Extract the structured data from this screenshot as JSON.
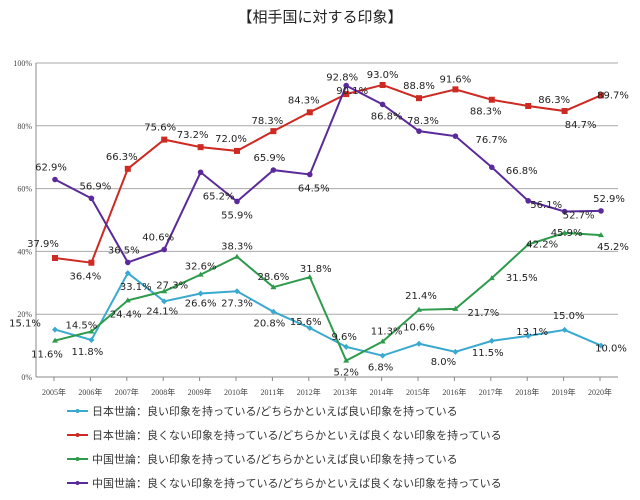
{
  "chart_data": {
    "type": "line",
    "title": "【相手国に対する印象】",
    "x": [
      "2005年",
      "2006年",
      "2007年",
      "2008年",
      "2009年",
      "2010年",
      "2011年",
      "2012年",
      "2013年",
      "2014年",
      "2015年",
      "2016年",
      "2017年",
      "2018年",
      "2019年",
      "2020年"
    ],
    "ylim": [
      0,
      100
    ],
    "yticks": [
      "0%",
      "20%",
      "40%",
      "60%",
      "80%",
      "100%"
    ],
    "grid": true,
    "legend_placement": "bottom",
    "series": [
      {
        "name": "日本世論：良い印象を持っている/どちらかといえば良い印象を持っている",
        "color": "#3aa9cf",
        "marker": "diamond",
        "values": [
          15.1,
          11.8,
          33.1,
          24.1,
          26.6,
          27.3,
          20.8,
          15.6,
          9.6,
          6.8,
          10.6,
          8.0,
          11.5,
          13.1,
          15.0,
          10.0
        ]
      },
      {
        "name": "日本世論：良くない印象を持っている/どちらかといえば良くない印象を持っている",
        "color": "#cc2a22",
        "marker": "square",
        "values": [
          37.9,
          36.4,
          66.3,
          75.6,
          73.2,
          72.0,
          78.3,
          84.3,
          90.1,
          93.0,
          88.8,
          91.6,
          88.3,
          86.3,
          84.7,
          89.7
        ]
      },
      {
        "name": "中国世論：良い印象を持っている/どちらかといえば良い印象を持っている",
        "color": "#2e9a4c",
        "marker": "triangle",
        "values": [
          11.6,
          14.5,
          24.4,
          27.3,
          32.6,
          38.3,
          28.6,
          31.8,
          5.2,
          11.3,
          21.4,
          21.7,
          31.5,
          42.2,
          45.9,
          45.2
        ]
      },
      {
        "name": "中国世論：良くない印象を持っている/どちらかといえば良くない印象を持っている",
        "color": "#5b2a9a",
        "marker": "circle",
        "values": [
          62.9,
          56.9,
          36.5,
          40.6,
          65.2,
          55.9,
          65.9,
          64.5,
          92.8,
          86.8,
          78.3,
          76.7,
          66.8,
          56.1,
          52.7,
          52.9
        ]
      }
    ]
  }
}
